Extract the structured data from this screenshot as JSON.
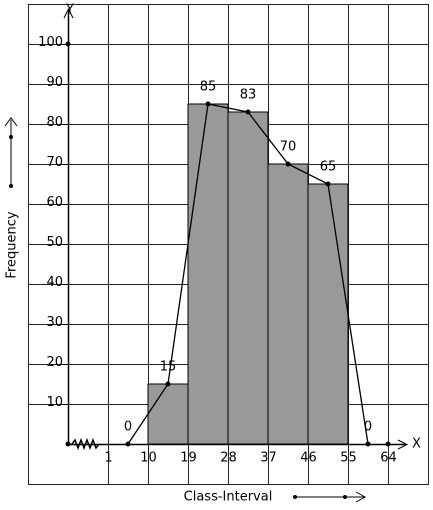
{
  "chart_data": {
    "type": "histogram",
    "x_label": "Class-Interval",
    "y_label": "Frequency",
    "x_axis_letter": "X",
    "y_axis_letter": "Y",
    "bins": [
      10,
      19,
      28,
      37,
      46,
      55
    ],
    "values": [
      15,
      85,
      83,
      70,
      65
    ],
    "color": "#999999",
    "polygon": {
      "x": [
        5.5,
        14.5,
        23.5,
        32.5,
        41.5,
        50.5,
        59.5
      ],
      "values": [
        0,
        15,
        85,
        83,
        70,
        65,
        0
      ],
      "color": "#000000"
    },
    "xlim": [
      -17,
      73
    ],
    "ylim": [
      -10,
      110
    ],
    "xticks": [
      1,
      10,
      19,
      28,
      37,
      46,
      55,
      64
    ],
    "yticks": [
      10,
      20,
      30,
      40,
      50,
      60,
      70,
      80,
      90,
      100
    ],
    "grid": true
  }
}
